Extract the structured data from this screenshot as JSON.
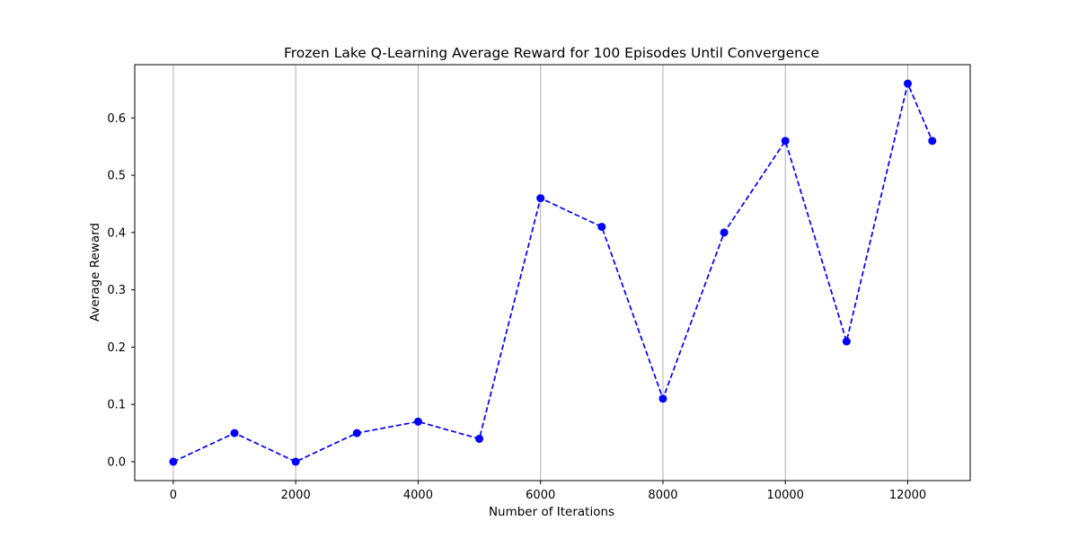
{
  "chart_data": {
    "type": "line",
    "title": "Frozen Lake Q-Learning Average Reward for 100 Episodes Until Convergence",
    "xlabel": "Number of Iterations",
    "ylabel": "Average Reward",
    "xlim": [
      -630,
      13020
    ],
    "ylim": [
      -0.033,
      0.693
    ],
    "xticks": [
      0,
      2000,
      4000,
      6000,
      8000,
      10000,
      12000
    ],
    "xtick_labels": [
      "0",
      "2000",
      "4000",
      "6000",
      "8000",
      "10000",
      "12000"
    ],
    "yticks": [
      0.0,
      0.1,
      0.2,
      0.3,
      0.4,
      0.5,
      0.6
    ],
    "ytick_labels": [
      "0.0",
      "0.1",
      "0.2",
      "0.3",
      "0.4",
      "0.5",
      "0.6"
    ],
    "grid": "x",
    "line_style": "dashed",
    "marker": "circle",
    "color": "#0000ff",
    "series": [
      {
        "x": [
          0,
          1000,
          2000,
          3000,
          4000,
          5000,
          6000,
          7000,
          8000,
          9000,
          10000,
          11000,
          12000,
          12400
        ],
        "y": [
          0.0,
          0.05,
          0.0,
          0.05,
          0.07,
          0.04,
          0.46,
          0.41,
          0.11,
          0.4,
          0.56,
          0.21,
          0.66,
          0.56
        ]
      }
    ]
  }
}
